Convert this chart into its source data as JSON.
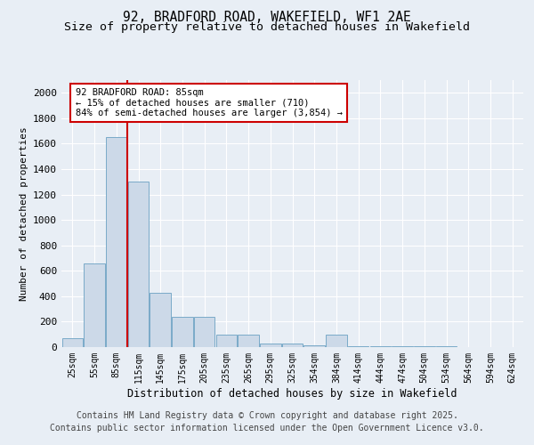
{
  "title_line1": "92, BRADFORD ROAD, WAKEFIELD, WF1 2AE",
  "title_line2": "Size of property relative to detached houses in Wakefield",
  "xlabel": "Distribution of detached houses by size in Wakefield",
  "ylabel": "Number of detached properties",
  "categories": [
    "25sqm",
    "55sqm",
    "85sqm",
    "115sqm",
    "145sqm",
    "175sqm",
    "205sqm",
    "235sqm",
    "265sqm",
    "295sqm",
    "325sqm",
    "354sqm",
    "384sqm",
    "414sqm",
    "444sqm",
    "474sqm",
    "504sqm",
    "534sqm",
    "564sqm",
    "594sqm",
    "624sqm"
  ],
  "values": [
    70,
    660,
    1650,
    1300,
    430,
    240,
    240,
    100,
    100,
    30,
    30,
    15,
    100,
    5,
    5,
    5,
    5,
    5,
    0,
    0,
    0
  ],
  "bar_color": "#ccd9e8",
  "bar_edge_color": "#7aaac8",
  "vline_x_index": 2,
  "vline_color": "#cc0000",
  "annotation_text": "92 BRADFORD ROAD: 85sqm\n← 15% of detached houses are smaller (710)\n84% of semi-detached houses are larger (3,854) →",
  "annotation_box_color": "#ffffff",
  "annotation_box_edge": "#cc0000",
  "ylim": [
    0,
    2100
  ],
  "yticks": [
    0,
    200,
    400,
    600,
    800,
    1000,
    1200,
    1400,
    1600,
    1800,
    2000
  ],
  "bg_color": "#e8eef5",
  "plot_bg_color": "#e8eef5",
  "footer_line1": "Contains HM Land Registry data © Crown copyright and database right 2025.",
  "footer_line2": "Contains public sector information licensed under the Open Government Licence v3.0.",
  "title_fontsize": 10.5,
  "subtitle_fontsize": 9.5,
  "footer_fontsize": 7
}
